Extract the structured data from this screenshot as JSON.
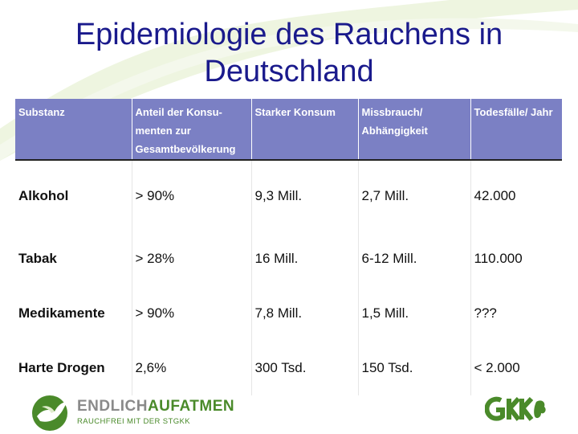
{
  "title": {
    "line1": "Epidemiologie des Rauchens in",
    "line2": "Deutschland"
  },
  "table": {
    "headers": [
      [
        "Substanz"
      ],
      [
        "Anteil der  Konsu-",
        "menten zur",
        "Gesamtbevölkerung"
      ],
      [
        "Starker Konsum"
      ],
      [
        "Missbrauch/",
        "Abhängigkeit"
      ],
      [
        "Todesfälle/ Jahr"
      ]
    ],
    "rows": [
      [
        "Alkohol",
        "> 90%",
        "9,3 Mill.",
        "2,7 Mill.",
        "42.000"
      ],
      [
        "Tabak",
        "> 28%",
        "16 Mill.",
        "6-12 Mill.",
        "110.000"
      ],
      [
        "Medikamente",
        "> 90%",
        "7,8 Mill.",
        "1,5 Mill.",
        "???"
      ],
      [
        "Harte Drogen",
        "2,6%",
        "300 Tsd.",
        "150 Tsd.",
        "< 2.000"
      ]
    ]
  },
  "logo_left": {
    "word1": "ENDLICH",
    "word2": "AUFATMEN",
    "tagline": "RAUCHFREI MIT DER STGKK",
    "icon": "dove-icon"
  },
  "logo_right": {
    "text": "GKK",
    "icon": "gkk-logo"
  },
  "colors": {
    "title": "#1a1a8c",
    "header_bg": "#7b80c4",
    "brand_green": "#4a8a2a"
  }
}
